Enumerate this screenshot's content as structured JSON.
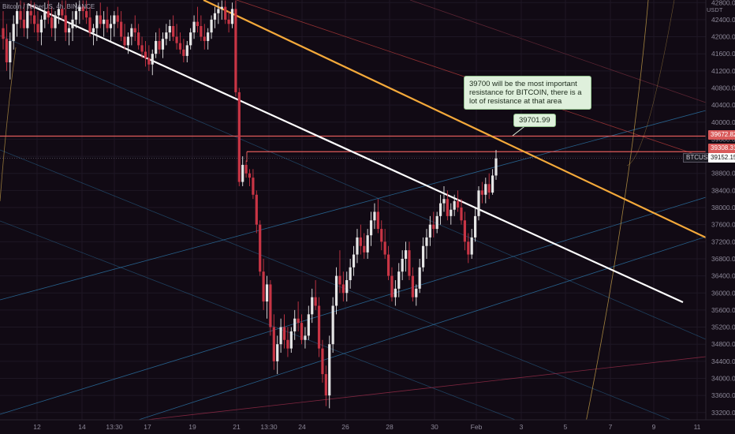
{
  "header": {
    "symbol_title": "Bitcoin / TetherUS, 4h, BINANCE",
    "currency": "USDT"
  },
  "annotations": {
    "note": "39700 will be the most important resistance for BITCOIN, there is a lot of resistance at that area",
    "level_label": "39701.99"
  },
  "price_badges": {
    "resistance_1": "39672.82",
    "resistance_2": "39308.31",
    "last_price": "39152.15",
    "ticker": "BTCUSDT"
  },
  "colors": {
    "background": "#110a14",
    "bull": "#e6e6e6",
    "bear": "#c93545",
    "trendline": "#ffffff",
    "resistance_line": "#f4a93a",
    "level_lines": "#e05a5a",
    "channel": "#2e7fb5"
  },
  "chart_data": {
    "type": "candlestick",
    "y_ticks": [
      "42800.00",
      "42400.00",
      "42000.00",
      "41600.00",
      "41200.00",
      "40800.00",
      "40400.00",
      "40000.00",
      "39600.00",
      "39200.00",
      "38800.00",
      "38400.00",
      "38000.00",
      "37600.00",
      "37200.00",
      "36800.00",
      "36400.00",
      "36000.00",
      "35600.00",
      "35200.00",
      "34800.00",
      "34400.00",
      "34000.00",
      "33600.00",
      "33200.00"
    ],
    "ylim": [
      33030,
      42860
    ],
    "x_ticks": [
      "12",
      "14",
      "13:30",
      "17",
      "19",
      "21",
      "13:30",
      "24",
      "26",
      "28",
      "30",
      "Feb",
      "3",
      "5",
      "7",
      "9",
      "11"
    ],
    "horizontal_levels": [
      39672.82,
      39308.31,
      39152.15
    ],
    "candles": [
      {
        "o": 42200,
        "h": 42600,
        "l": 41700,
        "c": 41950
      },
      {
        "o": 41950,
        "h": 42300,
        "l": 41200,
        "c": 41400
      },
      {
        "o": 41400,
        "h": 42100,
        "l": 41000,
        "c": 41900
      },
      {
        "o": 41900,
        "h": 42500,
        "l": 41700,
        "c": 42300
      },
      {
        "o": 42300,
        "h": 42800,
        "l": 42000,
        "c": 42600
      },
      {
        "o": 42600,
        "h": 42850,
        "l": 42200,
        "c": 42400
      },
      {
        "o": 42400,
        "h": 42800,
        "l": 42000,
        "c": 42200
      },
      {
        "o": 42200,
        "h": 42750,
        "l": 41950,
        "c": 42600
      },
      {
        "o": 42600,
        "h": 42850,
        "l": 42300,
        "c": 42500
      },
      {
        "o": 42500,
        "h": 42800,
        "l": 42100,
        "c": 42300
      },
      {
        "o": 42300,
        "h": 42600,
        "l": 41900,
        "c": 42100
      },
      {
        "o": 42100,
        "h": 42500,
        "l": 41800,
        "c": 42400
      },
      {
        "o": 42400,
        "h": 42800,
        "l": 42200,
        "c": 42600
      },
      {
        "o": 42600,
        "h": 42850,
        "l": 42300,
        "c": 42450
      },
      {
        "o": 42450,
        "h": 42700,
        "l": 42000,
        "c": 42200
      },
      {
        "o": 42200,
        "h": 42600,
        "l": 41900,
        "c": 42500
      },
      {
        "o": 42500,
        "h": 42800,
        "l": 42300,
        "c": 42650
      },
      {
        "o": 42650,
        "h": 42850,
        "l": 42400,
        "c": 42500
      },
      {
        "o": 42500,
        "h": 42850,
        "l": 41900,
        "c": 42100
      },
      {
        "o": 42100,
        "h": 42300,
        "l": 41800,
        "c": 42200
      },
      {
        "o": 42200,
        "h": 42600,
        "l": 41900,
        "c": 42400
      },
      {
        "o": 42400,
        "h": 42800,
        "l": 42200,
        "c": 42600
      },
      {
        "o": 42600,
        "h": 42850,
        "l": 42300,
        "c": 42700
      },
      {
        "o": 42700,
        "h": 42850,
        "l": 42400,
        "c": 42600
      },
      {
        "o": 42600,
        "h": 42850,
        "l": 42300,
        "c": 42450
      },
      {
        "o": 42450,
        "h": 42700,
        "l": 42000,
        "c": 42100
      },
      {
        "o": 42100,
        "h": 42300,
        "l": 41800,
        "c": 42200
      },
      {
        "o": 42200,
        "h": 42600,
        "l": 41900,
        "c": 42500
      },
      {
        "o": 42500,
        "h": 42800,
        "l": 42200,
        "c": 42300
      },
      {
        "o": 42300,
        "h": 42600,
        "l": 42000,
        "c": 42400
      },
      {
        "o": 42400,
        "h": 42700,
        "l": 42100,
        "c": 42200
      },
      {
        "o": 42200,
        "h": 42500,
        "l": 41900,
        "c": 42300
      },
      {
        "o": 42300,
        "h": 42600,
        "l": 42000,
        "c": 42500
      },
      {
        "o": 42500,
        "h": 42700,
        "l": 42200,
        "c": 42350
      },
      {
        "o": 42350,
        "h": 42600,
        "l": 41900,
        "c": 42000
      },
      {
        "o": 42000,
        "h": 42300,
        "l": 41700,
        "c": 41800
      },
      {
        "o": 41800,
        "h": 42100,
        "l": 41600,
        "c": 42000
      },
      {
        "o": 42000,
        "h": 42300,
        "l": 41800,
        "c": 42200
      },
      {
        "o": 42200,
        "h": 42500,
        "l": 41900,
        "c": 42100
      },
      {
        "o": 42100,
        "h": 42300,
        "l": 41700,
        "c": 41800
      },
      {
        "o": 41800,
        "h": 42000,
        "l": 41500,
        "c": 41650
      },
      {
        "o": 41650,
        "h": 41900,
        "l": 41300,
        "c": 41500
      },
      {
        "o": 41500,
        "h": 41800,
        "l": 41200,
        "c": 41350
      },
      {
        "o": 41350,
        "h": 41700,
        "l": 41100,
        "c": 41600
      },
      {
        "o": 41600,
        "h": 42100,
        "l": 41500,
        "c": 41900
      },
      {
        "o": 41900,
        "h": 42200,
        "l": 41600,
        "c": 41700
      },
      {
        "o": 41700,
        "h": 42100,
        "l": 41500,
        "c": 41950
      },
      {
        "o": 41950,
        "h": 42300,
        "l": 41800,
        "c": 42100
      },
      {
        "o": 42100,
        "h": 42400,
        "l": 41900,
        "c": 42250
      },
      {
        "o": 42250,
        "h": 42500,
        "l": 41900,
        "c": 42000
      },
      {
        "o": 42000,
        "h": 42300,
        "l": 41700,
        "c": 41850
      },
      {
        "o": 41850,
        "h": 42100,
        "l": 41600,
        "c": 41700
      },
      {
        "o": 41700,
        "h": 41950,
        "l": 41400,
        "c": 41550
      },
      {
        "o": 41550,
        "h": 41900,
        "l": 41400,
        "c": 41800
      },
      {
        "o": 41800,
        "h": 42200,
        "l": 41700,
        "c": 42100
      },
      {
        "o": 42100,
        "h": 42500,
        "l": 41950,
        "c": 42350
      },
      {
        "o": 42350,
        "h": 42700,
        "l": 42100,
        "c": 42250
      },
      {
        "o": 42250,
        "h": 42500,
        "l": 41900,
        "c": 42000
      },
      {
        "o": 42000,
        "h": 42300,
        "l": 41700,
        "c": 41900
      },
      {
        "o": 41900,
        "h": 42200,
        "l": 41700,
        "c": 42100
      },
      {
        "o": 42100,
        "h": 42500,
        "l": 41950,
        "c": 42400
      },
      {
        "o": 42400,
        "h": 42700,
        "l": 42200,
        "c": 42550
      },
      {
        "o": 42550,
        "h": 42800,
        "l": 42300,
        "c": 42650
      },
      {
        "o": 42650,
        "h": 42850,
        "l": 42400,
        "c": 42700
      },
      {
        "o": 42700,
        "h": 42850,
        "l": 42300,
        "c": 42400
      },
      {
        "o": 42400,
        "h": 42600,
        "l": 42100,
        "c": 42300
      },
      {
        "o": 42300,
        "h": 42800,
        "l": 42200,
        "c": 42650
      },
      {
        "o": 42650,
        "h": 42850,
        "l": 40600,
        "c": 40700
      },
      {
        "o": 40700,
        "h": 40800,
        "l": 38500,
        "c": 38600
      },
      {
        "o": 38600,
        "h": 39200,
        "l": 38500,
        "c": 39000
      },
      {
        "o": 39000,
        "h": 39100,
        "l": 38700,
        "c": 38800
      },
      {
        "o": 38800,
        "h": 38900,
        "l": 38500,
        "c": 38700
      },
      {
        "o": 38700,
        "h": 38900,
        "l": 38200,
        "c": 38300
      },
      {
        "o": 38300,
        "h": 38400,
        "l": 37400,
        "c": 37600
      },
      {
        "o": 37600,
        "h": 37700,
        "l": 36400,
        "c": 36500
      },
      {
        "o": 36500,
        "h": 36800,
        "l": 35600,
        "c": 35800
      },
      {
        "o": 35800,
        "h": 36400,
        "l": 35400,
        "c": 36200
      },
      {
        "o": 36200,
        "h": 36300,
        "l": 35000,
        "c": 35200
      },
      {
        "o": 35200,
        "h": 35500,
        "l": 34200,
        "c": 34400
      },
      {
        "o": 34400,
        "h": 35000,
        "l": 34100,
        "c": 34800
      },
      {
        "o": 34800,
        "h": 35400,
        "l": 34600,
        "c": 35200
      },
      {
        "o": 35200,
        "h": 35500,
        "l": 34700,
        "c": 34900
      },
      {
        "o": 34900,
        "h": 35200,
        "l": 34500,
        "c": 34700
      },
      {
        "o": 34700,
        "h": 35200,
        "l": 34600,
        "c": 35100
      },
      {
        "o": 35100,
        "h": 35600,
        "l": 34900,
        "c": 35400
      },
      {
        "o": 35400,
        "h": 35800,
        "l": 35100,
        "c": 35300
      },
      {
        "o": 35300,
        "h": 35500,
        "l": 34800,
        "c": 34900
      },
      {
        "o": 34900,
        "h": 35200,
        "l": 34700,
        "c": 35000
      },
      {
        "o": 35000,
        "h": 35700,
        "l": 34900,
        "c": 35500
      },
      {
        "o": 35500,
        "h": 36100,
        "l": 35300,
        "c": 35900
      },
      {
        "o": 35900,
        "h": 36300,
        "l": 35600,
        "c": 35700
      },
      {
        "o": 35700,
        "h": 35900,
        "l": 34500,
        "c": 34700
      },
      {
        "o": 34700,
        "h": 34900,
        "l": 33900,
        "c": 34100
      },
      {
        "o": 34100,
        "h": 34300,
        "l": 33350,
        "c": 33600
      },
      {
        "o": 33600,
        "h": 35000,
        "l": 33300,
        "c": 34800
      },
      {
        "o": 34800,
        "h": 35900,
        "l": 34600,
        "c": 35700
      },
      {
        "o": 35700,
        "h": 36600,
        "l": 35500,
        "c": 36400
      },
      {
        "o": 36400,
        "h": 37000,
        "l": 36000,
        "c": 36200
      },
      {
        "o": 36200,
        "h": 36500,
        "l": 35800,
        "c": 36000
      },
      {
        "o": 36000,
        "h": 36500,
        "l": 35800,
        "c": 36300
      },
      {
        "o": 36300,
        "h": 36800,
        "l": 36100,
        "c": 36600
      },
      {
        "o": 36600,
        "h": 37100,
        "l": 36400,
        "c": 36900
      },
      {
        "o": 36900,
        "h": 37500,
        "l": 36700,
        "c": 37300
      },
      {
        "o": 37300,
        "h": 37600,
        "l": 36900,
        "c": 37100
      },
      {
        "o": 37100,
        "h": 37400,
        "l": 36800,
        "c": 36950
      },
      {
        "o": 36950,
        "h": 37500,
        "l": 36800,
        "c": 37350
      },
      {
        "o": 37350,
        "h": 37900,
        "l": 37100,
        "c": 37700
      },
      {
        "o": 37700,
        "h": 38100,
        "l": 37500,
        "c": 37900
      },
      {
        "o": 37900,
        "h": 38200,
        "l": 37400,
        "c": 37500
      },
      {
        "o": 37500,
        "h": 37700,
        "l": 37000,
        "c": 37200
      },
      {
        "o": 37200,
        "h": 37500,
        "l": 36800,
        "c": 36900
      },
      {
        "o": 36900,
        "h": 37100,
        "l": 36300,
        "c": 36400
      },
      {
        "o": 36400,
        "h": 36600,
        "l": 35800,
        "c": 35900
      },
      {
        "o": 35900,
        "h": 36300,
        "l": 35700,
        "c": 36100
      },
      {
        "o": 36100,
        "h": 36700,
        "l": 35900,
        "c": 36500
      },
      {
        "o": 36500,
        "h": 37000,
        "l": 36300,
        "c": 36800
      },
      {
        "o": 36800,
        "h": 37200,
        "l": 36500,
        "c": 37000
      },
      {
        "o": 37000,
        "h": 37200,
        "l": 36300,
        "c": 36400
      },
      {
        "o": 36400,
        "h": 36600,
        "l": 35800,
        "c": 35900
      },
      {
        "o": 35900,
        "h": 36200,
        "l": 35700,
        "c": 36100
      },
      {
        "o": 36100,
        "h": 36800,
        "l": 36000,
        "c": 36600
      },
      {
        "o": 36600,
        "h": 37300,
        "l": 36500,
        "c": 37100
      },
      {
        "o": 37100,
        "h": 37500,
        "l": 36800,
        "c": 37300
      },
      {
        "o": 37300,
        "h": 37800,
        "l": 37100,
        "c": 37600
      },
      {
        "o": 37600,
        "h": 37900,
        "l": 37300,
        "c": 37500
      },
      {
        "o": 37500,
        "h": 37900,
        "l": 37400,
        "c": 37800
      },
      {
        "o": 37800,
        "h": 38300,
        "l": 37600,
        "c": 38100
      },
      {
        "o": 38100,
        "h": 38500,
        "l": 37900,
        "c": 38200
      },
      {
        "o": 38200,
        "h": 38400,
        "l": 37700,
        "c": 37800
      },
      {
        "o": 37800,
        "h": 38100,
        "l": 37600,
        "c": 37950
      },
      {
        "o": 37950,
        "h": 38300,
        "l": 37800,
        "c": 38150
      },
      {
        "o": 38150,
        "h": 38400,
        "l": 37900,
        "c": 38000
      },
      {
        "o": 38000,
        "h": 38200,
        "l": 37600,
        "c": 37700
      },
      {
        "o": 37700,
        "h": 37900,
        "l": 37000,
        "c": 37200
      },
      {
        "o": 37200,
        "h": 37400,
        "l": 36700,
        "c": 36900
      },
      {
        "o": 36900,
        "h": 37500,
        "l": 36800,
        "c": 37300
      },
      {
        "o": 37300,
        "h": 38000,
        "l": 37200,
        "c": 37800
      },
      {
        "o": 37800,
        "h": 38500,
        "l": 37700,
        "c": 38400
      },
      {
        "o": 38400,
        "h": 38600,
        "l": 38100,
        "c": 38300
      },
      {
        "o": 38300,
        "h": 38700,
        "l": 38100,
        "c": 38550
      },
      {
        "o": 38550,
        "h": 38800,
        "l": 38200,
        "c": 38350
      },
      {
        "o": 38350,
        "h": 38900,
        "l": 38300,
        "c": 38750
      },
      {
        "o": 38750,
        "h": 39350,
        "l": 38650,
        "c": 39150
      }
    ]
  }
}
